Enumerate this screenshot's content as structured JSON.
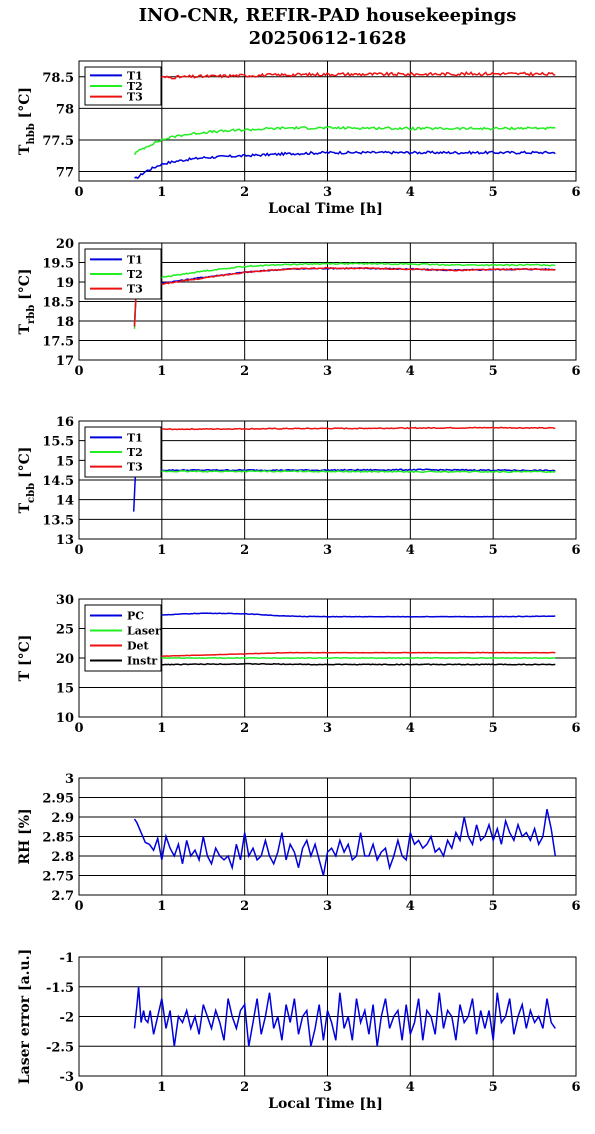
{
  "title": {
    "line1": "INO-CNR, REFIR-PAD housekeepings",
    "line2": "20250612-1628"
  },
  "colors": {
    "blue": "#0000dd",
    "green": "#22ee22",
    "red": "#ee1111",
    "black": "#000000"
  },
  "chart_data": [
    {
      "id": "hbb",
      "type": "line",
      "ylabel": "T",
      "ylabel_sub": "hbb",
      "ylabel_unit": " [°C]",
      "xlabel": "Local Time [h]",
      "xlim": [
        0,
        6
      ],
      "ylim": [
        76.85,
        78.75
      ],
      "xticks": [
        "0",
        "1",
        "2",
        "3",
        "4",
        "5",
        "6"
      ],
      "yticks": [
        {
          "v": 77,
          "label": "77"
        },
        {
          "v": 77.5,
          "label": "77.5"
        },
        {
          "v": 78,
          "label": "78"
        },
        {
          "v": 78.5,
          "label": "78.5"
        }
      ],
      "grid": true,
      "legend": "top-left",
      "series": [
        {
          "name": "T1",
          "color": "#0000dd",
          "noise": 0.02,
          "x": [
            0.67,
            0.72,
            0.8,
            0.9,
            1.0,
            1.2,
            1.5,
            2.0,
            2.5,
            3.0,
            3.5,
            4.0,
            4.5,
            5.0,
            5.5,
            5.75
          ],
          "y": [
            76.88,
            76.92,
            77.0,
            77.06,
            77.12,
            77.17,
            77.22,
            77.25,
            77.28,
            77.3,
            77.3,
            77.3,
            77.3,
            77.3,
            77.3,
            77.3
          ]
        },
        {
          "name": "T2",
          "color": "#22ee22",
          "noise": 0.02,
          "x": [
            0.67,
            0.75,
            0.85,
            1.0,
            1.2,
            1.5,
            2.0,
            2.5,
            3.0,
            3.5,
            4.0,
            4.5,
            5.0,
            5.5,
            5.75
          ],
          "y": [
            77.28,
            77.35,
            77.42,
            77.5,
            77.57,
            77.62,
            77.66,
            77.69,
            77.69,
            77.69,
            77.68,
            77.68,
            77.68,
            77.69,
            77.68
          ]
        },
        {
          "name": "T3",
          "color": "#ee1111",
          "noise": 0.025,
          "x": [
            0.67,
            1.0,
            2.0,
            3.0,
            4.0,
            5.0,
            5.75
          ],
          "y": [
            78.5,
            78.49,
            78.52,
            78.54,
            78.54,
            78.55,
            78.54
          ]
        }
      ]
    },
    {
      "id": "rbb",
      "type": "line",
      "ylabel": "T",
      "ylabel_sub": "rbb",
      "ylabel_unit": " [°C]",
      "xlabel": "",
      "xlim": [
        0,
        6
      ],
      "ylim": [
        17,
        20
      ],
      "xticks": [
        "0",
        "1",
        "2",
        "3",
        "4",
        "5",
        "6"
      ],
      "yticks": [
        {
          "v": 17,
          "label": "17"
        },
        {
          "v": 17.5,
          "label": "17.5"
        },
        {
          "v": 18,
          "label": "18"
        },
        {
          "v": 18.5,
          "label": "18.5"
        },
        {
          "v": 19,
          "label": "19"
        },
        {
          "v": 19.5,
          "label": "19.5"
        },
        {
          "v": 20,
          "label": "20"
        }
      ],
      "grid": true,
      "legend": "top-left",
      "series": [
        {
          "name": "T1",
          "color": "#0000dd",
          "noise": 0.015,
          "x": [
            0.67,
            0.68,
            0.7,
            0.8,
            1.0,
            1.5,
            2.0,
            2.5,
            3.0,
            3.5,
            4.0,
            4.5,
            5.0,
            5.5,
            5.75
          ],
          "y": [
            17.9,
            18.6,
            18.9,
            18.92,
            18.97,
            19.12,
            19.25,
            19.33,
            19.35,
            19.35,
            19.33,
            19.3,
            19.32,
            19.33,
            19.32
          ]
        },
        {
          "name": "T2",
          "color": "#22ee22",
          "noise": 0.015,
          "x": [
            0.67,
            0.68,
            0.7,
            0.8,
            1.0,
            1.5,
            2.0,
            2.5,
            3.0,
            3.5,
            4.0,
            4.5,
            5.0,
            5.5,
            5.75
          ],
          "y": [
            17.8,
            18.5,
            19.0,
            19.05,
            19.12,
            19.28,
            19.4,
            19.45,
            19.47,
            19.47,
            19.46,
            19.44,
            19.43,
            19.44,
            19.43
          ]
        },
        {
          "name": "T3",
          "color": "#ee1111",
          "noise": 0.015,
          "x": [
            0.67,
            0.68,
            0.7,
            0.8,
            1.0,
            1.5,
            2.0,
            2.5,
            3.0,
            3.5,
            4.0,
            4.5,
            5.0,
            5.5,
            5.75
          ],
          "y": [
            17.85,
            18.55,
            18.88,
            18.9,
            18.95,
            19.1,
            19.25,
            19.33,
            19.36,
            19.35,
            19.33,
            19.3,
            19.32,
            19.33,
            19.3
          ]
        }
      ]
    },
    {
      "id": "cbb",
      "type": "line",
      "ylabel": "T",
      "ylabel_sub": "cbb",
      "ylabel_unit": " [°C]",
      "xlabel": "",
      "xlim": [
        0,
        6
      ],
      "ylim": [
        13,
        16
      ],
      "xticks": [
        "0",
        "1",
        "2",
        "3",
        "4",
        "5",
        "6"
      ],
      "yticks": [
        {
          "v": 13,
          "label": "13"
        },
        {
          "v": 13.5,
          "label": "13.5"
        },
        {
          "v": 14,
          "label": "14"
        },
        {
          "v": 14.5,
          "label": "14.5"
        },
        {
          "v": 15,
          "label": "15"
        },
        {
          "v": 15.5,
          "label": "15.5"
        },
        {
          "v": 16,
          "label": "16"
        }
      ],
      "grid": true,
      "legend": "top-left",
      "series": [
        {
          "name": "T1",
          "color": "#0000dd",
          "noise": 0.015,
          "x": [
            0.66,
            0.67,
            0.68,
            0.7,
            0.8,
            1.0,
            2.0,
            3.0,
            4.0,
            5.0,
            5.75
          ],
          "y": [
            13.7,
            14.1,
            14.6,
            14.72,
            14.75,
            14.75,
            14.75,
            14.75,
            14.76,
            14.75,
            14.74
          ]
        },
        {
          "name": "T2",
          "color": "#22ee22",
          "noise": 0.015,
          "x": [
            0.7,
            1.0,
            2.0,
            3.0,
            4.0,
            5.0,
            5.75
          ],
          "y": [
            14.72,
            14.72,
            14.72,
            14.72,
            14.71,
            14.71,
            14.71
          ]
        },
        {
          "name": "T3",
          "color": "#ee1111",
          "noise": 0.012,
          "x": [
            0.7,
            1.0,
            2.0,
            3.0,
            4.0,
            5.0,
            5.75
          ],
          "y": [
            15.78,
            15.79,
            15.8,
            15.81,
            15.82,
            15.83,
            15.82
          ]
        }
      ]
    },
    {
      "id": "temps",
      "type": "line",
      "ylabel": "T [°C]",
      "xlabel": "",
      "xlim": [
        0,
        6
      ],
      "ylim": [
        10,
        30
      ],
      "xticks": [
        "0",
        "1",
        "2",
        "3",
        "4",
        "5",
        "6"
      ],
      "yticks": [
        {
          "v": 10,
          "label": "10"
        },
        {
          "v": 15,
          "label": "15"
        },
        {
          "v": 20,
          "label": "20"
        },
        {
          "v": 25,
          "label": "25"
        },
        {
          "v": 30,
          "label": "30"
        }
      ],
      "grid": true,
      "legend": "top-left",
      "series": [
        {
          "name": "PC",
          "color": "#0000dd",
          "noise": 0.04,
          "x": [
            0.67,
            1.0,
            1.5,
            2.0,
            2.5,
            3.0,
            4.0,
            5.0,
            5.75
          ],
          "y": [
            27.2,
            27.3,
            27.6,
            27.5,
            27.1,
            27.0,
            27.0,
            27.0,
            27.1
          ]
        },
        {
          "name": "Laser",
          "color": "#22ee22",
          "noise": 0.05,
          "x": [
            0.67,
            1.0,
            2.0,
            3.0,
            4.0,
            5.0,
            5.75
          ],
          "y": [
            20.0,
            20.0,
            20.0,
            20.0,
            20.0,
            20.0,
            20.0
          ]
        },
        {
          "name": "Det",
          "color": "#ee1111",
          "noise": 0.03,
          "x": [
            0.67,
            1.0,
            1.5,
            2.0,
            2.5,
            3.0,
            4.0,
            5.0,
            5.75
          ],
          "y": [
            20.3,
            20.3,
            20.5,
            20.7,
            20.9,
            20.9,
            20.9,
            20.9,
            20.9
          ]
        },
        {
          "name": "Instr",
          "color": "#000000",
          "noise": 0.06,
          "x": [
            0.67,
            1.0,
            2.0,
            3.0,
            4.0,
            5.0,
            5.75
          ],
          "y": [
            18.9,
            18.9,
            19.0,
            18.9,
            18.9,
            18.9,
            18.9
          ]
        }
      ]
    },
    {
      "id": "rh",
      "type": "line",
      "ylabel": "RH [%]",
      "xlabel": "",
      "xlim": [
        0,
        6
      ],
      "ylim": [
        2.7,
        3
      ],
      "xticks": [
        "0",
        "1",
        "2",
        "3",
        "4",
        "5",
        "6"
      ],
      "yticks": [
        {
          "v": 2.7,
          "label": "2.7"
        },
        {
          "v": 2.75,
          "label": "2.75"
        },
        {
          "v": 2.8,
          "label": "2.8"
        },
        {
          "v": 2.85,
          "label": "2.85"
        },
        {
          "v": 2.9,
          "label": "2.9"
        },
        {
          "v": 2.95,
          "label": "2.95"
        },
        {
          "v": 3,
          "label": "3"
        }
      ],
      "grid": true,
      "series": [
        {
          "name": "",
          "color": "#0000dd",
          "noise": 0.0,
          "x": [
            0.67,
            0.7,
            0.75,
            0.8,
            0.85,
            0.9,
            0.95,
            1.0,
            1.05,
            1.1,
            1.15,
            1.2,
            1.25,
            1.3,
            1.35,
            1.4,
            1.45,
            1.5,
            1.55,
            1.6,
            1.65,
            1.7,
            1.75,
            1.8,
            1.85,
            1.9,
            1.95,
            2.0,
            2.05,
            2.1,
            2.15,
            2.2,
            2.25,
            2.3,
            2.35,
            2.4,
            2.45,
            2.5,
            2.55,
            2.6,
            2.65,
            2.7,
            2.75,
            2.8,
            2.85,
            2.9,
            2.95,
            3.0,
            3.05,
            3.1,
            3.15,
            3.2,
            3.25,
            3.3,
            3.35,
            3.4,
            3.45,
            3.5,
            3.55,
            3.6,
            3.65,
            3.7,
            3.75,
            3.8,
            3.85,
            3.9,
            3.95,
            4.0,
            4.05,
            4.1,
            4.15,
            4.2,
            4.25,
            4.3,
            4.35,
            4.4,
            4.45,
            4.5,
            4.55,
            4.6,
            4.65,
            4.7,
            4.75,
            4.8,
            4.85,
            4.9,
            4.95,
            5.0,
            5.05,
            5.1,
            5.15,
            5.2,
            5.25,
            5.3,
            5.35,
            5.4,
            5.45,
            5.5,
            5.55,
            5.6,
            5.65,
            5.7,
            5.75
          ],
          "y": [
            2.895,
            2.885,
            2.86,
            2.835,
            2.83,
            2.815,
            2.845,
            2.79,
            2.85,
            2.82,
            2.8,
            2.83,
            2.78,
            2.84,
            2.8,
            2.815,
            2.79,
            2.85,
            2.8,
            2.78,
            2.82,
            2.8,
            2.79,
            2.8,
            2.77,
            2.83,
            2.79,
            2.86,
            2.8,
            2.82,
            2.79,
            2.8,
            2.84,
            2.8,
            2.78,
            2.81,
            2.86,
            2.79,
            2.83,
            2.81,
            2.77,
            2.82,
            2.84,
            2.8,
            2.83,
            2.79,
            2.75,
            2.81,
            2.82,
            2.8,
            2.84,
            2.81,
            2.83,
            2.79,
            2.8,
            2.86,
            2.8,
            2.8,
            2.83,
            2.79,
            2.81,
            2.82,
            2.77,
            2.8,
            2.84,
            2.8,
            2.79,
            2.86,
            2.83,
            2.84,
            2.82,
            2.83,
            2.85,
            2.81,
            2.82,
            2.8,
            2.84,
            2.82,
            2.86,
            2.84,
            2.9,
            2.85,
            2.83,
            2.88,
            2.84,
            2.85,
            2.88,
            2.84,
            2.87,
            2.83,
            2.89,
            2.86,
            2.84,
            2.88,
            2.85,
            2.86,
            2.84,
            2.87,
            2.83,
            2.85,
            2.92,
            2.87,
            2.8
          ]
        }
      ]
    },
    {
      "id": "laser",
      "type": "line",
      "ylabel": "Laser error [a.u.]",
      "xlabel": "Local Time [h]",
      "xlim": [
        0,
        6
      ],
      "ylim": [
        -3,
        -1
      ],
      "xticks": [
        "0",
        "1",
        "2",
        "3",
        "4",
        "5",
        "6"
      ],
      "yticks": [
        {
          "v": -3,
          "label": "-3"
        },
        {
          "v": -2.5,
          "label": "-2.5"
        },
        {
          "v": -2,
          "label": "-2"
        },
        {
          "v": -1.5,
          "label": "-1.5"
        },
        {
          "v": -1,
          "label": "-1"
        }
      ],
      "grid": true,
      "series": [
        {
          "name": "",
          "color": "#0000dd",
          "noise": 0.0,
          "x": [
            0.67,
            0.7,
            0.72,
            0.75,
            0.78,
            0.8,
            0.83,
            0.86,
            0.9,
            0.95,
            1.0,
            1.05,
            1.1,
            1.15,
            1.2,
            1.25,
            1.3,
            1.35,
            1.4,
            1.45,
            1.5,
            1.55,
            1.6,
            1.65,
            1.7,
            1.75,
            1.8,
            1.85,
            1.9,
            1.95,
            2.0,
            2.05,
            2.1,
            2.15,
            2.2,
            2.25,
            2.3,
            2.35,
            2.4,
            2.45,
            2.5,
            2.55,
            2.6,
            2.65,
            2.7,
            2.75,
            2.8,
            2.85,
            2.9,
            2.95,
            3.0,
            3.05,
            3.1,
            3.15,
            3.2,
            3.25,
            3.3,
            3.35,
            3.4,
            3.45,
            3.5,
            3.55,
            3.6,
            3.65,
            3.7,
            3.75,
            3.8,
            3.85,
            3.9,
            3.95,
            4.0,
            4.05,
            4.1,
            4.15,
            4.2,
            4.25,
            4.3,
            4.35,
            4.4,
            4.45,
            4.5,
            4.55,
            4.6,
            4.65,
            4.7,
            4.75,
            4.8,
            4.85,
            4.9,
            4.95,
            5.0,
            5.05,
            5.1,
            5.15,
            5.2,
            5.25,
            5.3,
            5.35,
            5.4,
            5.45,
            5.5,
            5.55,
            5.6,
            5.65,
            5.7,
            5.75
          ],
          "y": [
            -2.2,
            -1.8,
            -1.5,
            -2.1,
            -1.9,
            -2.05,
            -2.1,
            -1.9,
            -2.3,
            -2.0,
            -1.7,
            -2.2,
            -1.9,
            -2.5,
            -2.0,
            -2.1,
            -1.9,
            -2.2,
            -2.0,
            -2.3,
            -1.8,
            -2.0,
            -2.2,
            -1.9,
            -2.1,
            -2.4,
            -1.7,
            -2.0,
            -2.2,
            -1.9,
            -1.8,
            -2.5,
            -2.1,
            -1.7,
            -2.3,
            -2.0,
            -1.6,
            -2.2,
            -2.0,
            -2.4,
            -1.8,
            -2.1,
            -1.7,
            -2.3,
            -2.0,
            -1.9,
            -2.5,
            -2.2,
            -1.8,
            -2.4,
            -1.9,
            -2.1,
            -2.4,
            -1.6,
            -2.2,
            -2.0,
            -2.4,
            -1.7,
            -2.1,
            -1.9,
            -2.3,
            -1.8,
            -2.5,
            -2.0,
            -1.7,
            -2.2,
            -2.0,
            -1.9,
            -2.4,
            -1.8,
            -2.3,
            -2.1,
            -1.7,
            -2.4,
            -1.9,
            -2.0,
            -2.3,
            -1.6,
            -2.2,
            -1.9,
            -2.0,
            -2.4,
            -1.8,
            -2.1,
            -2.0,
            -1.7,
            -2.3,
            -1.9,
            -2.2,
            -1.9,
            -2.4,
            -1.6,
            -2.1,
            -2.0,
            -1.7,
            -2.3,
            -2.0,
            -1.8,
            -2.2,
            -1.9,
            -2.1,
            -2.0,
            -2.2,
            -1.7,
            -2.1,
            -2.2
          ]
        }
      ]
    }
  ]
}
